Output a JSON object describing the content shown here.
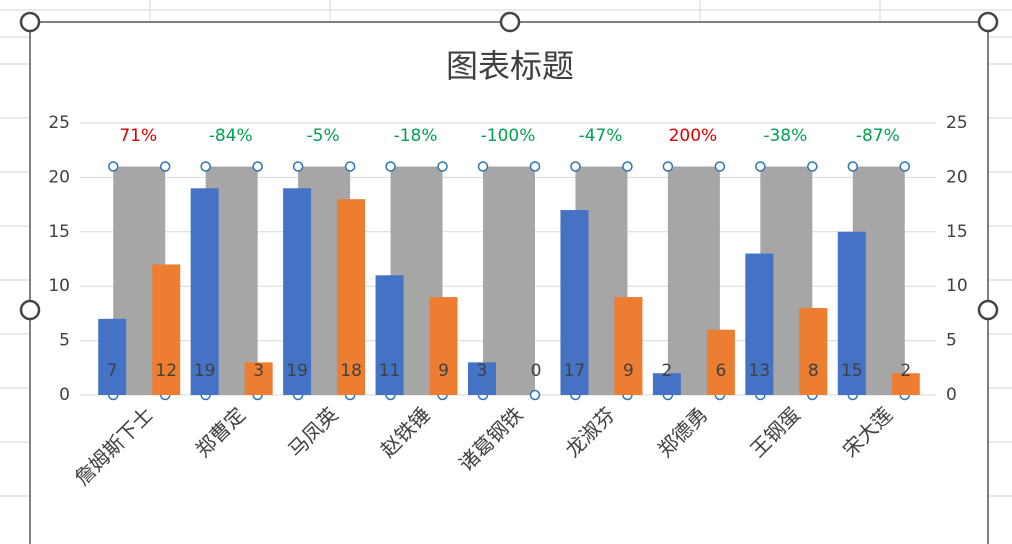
{
  "chart_data": {
    "type": "bar",
    "title": "图表标题",
    "categories": [
      "詹姆斯下士",
      "郑曹定",
      "马凤英",
      "赵铁锤",
      "诸葛钢铁",
      "龙淑芬",
      "郑德勇",
      "王钢蛋",
      "宋大莲"
    ],
    "series": [
      {
        "color": "#a6a6a6",
        "axis": "y2",
        "values": [
          21,
          21,
          21,
          21,
          21,
          21,
          21,
          21,
          21
        ]
      },
      {
        "color": "#4472c4",
        "values": [
          7,
          19,
          19,
          11,
          3,
          17,
          2,
          13,
          15
        ]
      },
      {
        "color": "#ed7d31",
        "values": [
          12,
          3,
          18,
          9,
          0,
          9,
          6,
          8,
          2
        ]
      }
    ],
    "annotations": [
      "71%",
      "-84%",
      "-5%",
      "-18%",
      "-100%",
      "-47%",
      "200%",
      "-38%",
      "-87%"
    ],
    "annotation_colors": [
      "#e00000",
      "#00a050",
      "#00a050",
      "#00a050",
      "#00a050",
      "#00a050",
      "#e00000",
      "#00a050",
      "#00a050"
    ],
    "ylim": [
      0,
      25
    ],
    "yticks": [
      0,
      5,
      10,
      15,
      20,
      25
    ],
    "y2lim": [
      0,
      25
    ],
    "y2ticks": [
      0,
      5,
      10,
      15,
      20,
      25
    ],
    "grid": true
  }
}
